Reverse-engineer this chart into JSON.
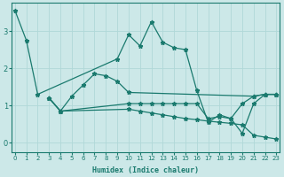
{
  "xlabel": "Humidex (Indice chaleur)",
  "ylabel": "",
  "bg_color": "#cce8e8",
  "line_color": "#1a7a6e",
  "grid_color": "#b0d8d8",
  "series": [
    {
      "x": [
        0,
        1,
        2,
        9,
        10,
        11,
        12,
        13,
        14,
        15,
        16,
        17,
        18,
        19,
        20,
        21,
        22,
        23
      ],
      "y": [
        3.55,
        2.75,
        1.3,
        2.25,
        2.9,
        2.6,
        3.25,
        2.7,
        2.55,
        2.5,
        1.4,
        0.55,
        0.75,
        0.65,
        0.25,
        1.05,
        1.3,
        1.3
      ]
    },
    {
      "x": [
        3,
        4,
        5,
        6,
        7,
        8,
        9,
        10,
        21,
        22,
        23
      ],
      "y": [
        1.2,
        0.85,
        1.25,
        1.55,
        1.85,
        1.8,
        1.65,
        1.35,
        1.25,
        1.3,
        1.3
      ]
    },
    {
      "x": [
        3,
        4,
        10,
        11,
        12,
        13,
        14,
        15,
        16,
        17,
        18,
        19,
        20,
        21,
        22,
        23
      ],
      "y": [
        1.2,
        0.85,
        1.05,
        1.05,
        1.05,
        1.05,
        1.05,
        1.05,
        1.05,
        0.65,
        0.7,
        0.65,
        1.05,
        1.25,
        1.3,
        1.3
      ]
    },
    {
      "x": [
        3,
        4,
        10,
        11,
        12,
        13,
        14,
        15,
        16,
        17,
        18,
        19,
        20,
        21,
        22,
        23
      ],
      "y": [
        1.2,
        0.85,
        0.9,
        0.85,
        0.8,
        0.75,
        0.7,
        0.65,
        0.62,
        0.58,
        0.55,
        0.52,
        0.48,
        0.2,
        0.15,
        0.1
      ]
    }
  ],
  "xlim": [
    -0.3,
    23.3
  ],
  "ylim": [
    -0.25,
    3.75
  ],
  "xticks": [
    0,
    1,
    2,
    3,
    4,
    5,
    6,
    7,
    8,
    9,
    10,
    11,
    12,
    13,
    14,
    15,
    16,
    17,
    18,
    19,
    20,
    21,
    22,
    23
  ],
  "yticks": [
    0,
    1,
    2,
    3
  ],
  "marker": "*",
  "markersize": 3.5,
  "linewidth": 0.9
}
